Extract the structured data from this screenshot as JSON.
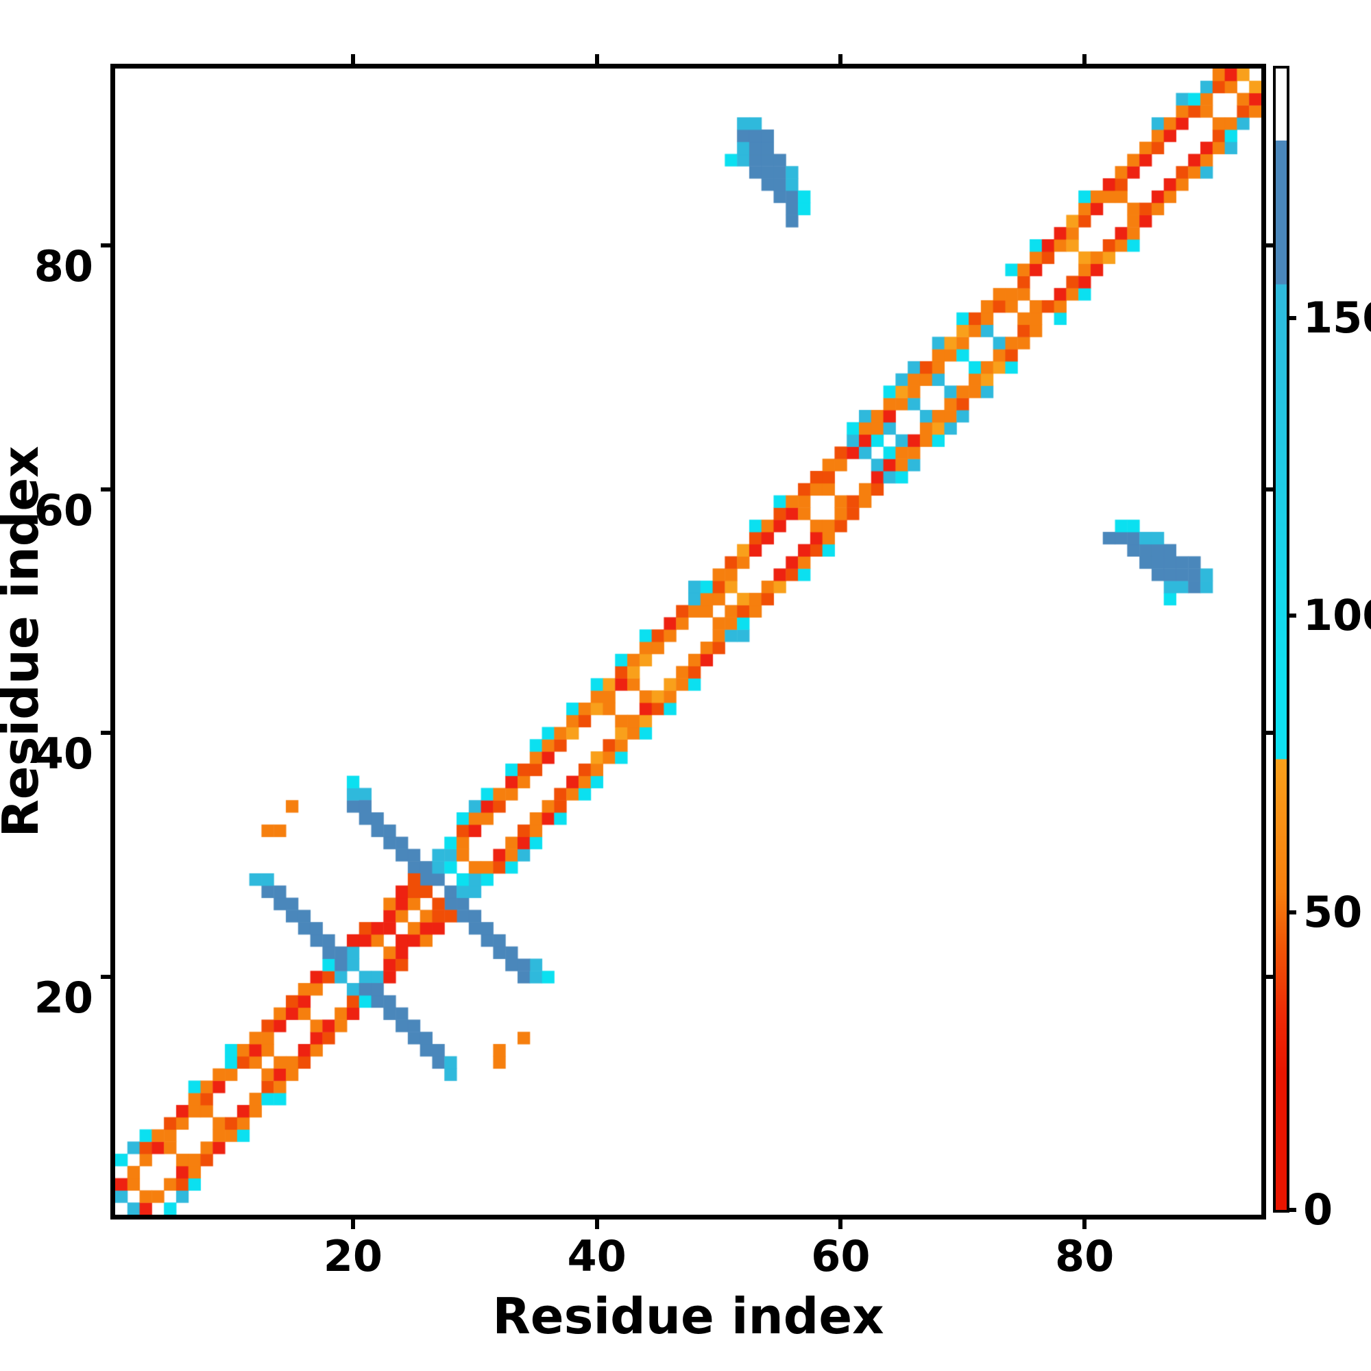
{
  "page_bg": "#ffffff",
  "chart_data": {
    "type": "heatmap",
    "subtype": "protein-residue-contact-map",
    "title": "",
    "xlabel": "Residue index",
    "ylabel": "Residue index",
    "n_residues": 94,
    "x_range": [
      0.5,
      94.5
    ],
    "y_range": [
      0.5,
      94.5
    ],
    "x_ticks": [
      20,
      40,
      60,
      80
    ],
    "y_ticks": [
      20,
      40,
      60,
      80
    ],
    "grid": false,
    "background_value_color": "#ffffff",
    "symmetric": true,
    "palette": {
      "25": "#ee2211",
      "40": "#f04e06",
      "55": "#f67f0e",
      "68": "#f9a01b",
      "85": "#0be0f0",
      "120": "#2fb9dc",
      "160": "#4a87bb"
    },
    "colorbar": {
      "ticks": [
        0,
        50,
        100,
        150
      ],
      "value_min": 0,
      "value_max": 192,
      "stops": [
        [
          0.0,
          "#ffffff"
        ],
        [
          0.063,
          "#ffffff"
        ],
        [
          0.0631,
          "#4a87bb"
        ],
        [
          0.189,
          "#4a87bb"
        ],
        [
          0.1891,
          "#2fb9dc"
        ],
        [
          0.54,
          "#0ee0f0"
        ],
        [
          0.605,
          "#0ee0f0"
        ],
        [
          0.6051,
          "#f9a01b"
        ],
        [
          0.72,
          "#f67f0e"
        ],
        [
          0.77,
          "#f05507"
        ],
        [
          0.83,
          "#ee2a06"
        ],
        [
          0.88,
          "#e81500"
        ],
        [
          1.0,
          "#e81500"
        ]
      ]
    },
    "contacts": [
      [
        1,
        2,
        120
      ],
      [
        1,
        3,
        25
      ],
      [
        1,
        5,
        85
      ],
      [
        2,
        3,
        55
      ],
      [
        2,
        4,
        55
      ],
      [
        2,
        6,
        120
      ],
      [
        3,
        5,
        55
      ],
      [
        3,
        6,
        40
      ],
      [
        3,
        7,
        85
      ],
      [
        4,
        6,
        25
      ],
      [
        4,
        7,
        55
      ],
      [
        5,
        6,
        55
      ],
      [
        5,
        7,
        55
      ],
      [
        5,
        8,
        40
      ],
      [
        6,
        8,
        55
      ],
      [
        6,
        9,
        25
      ],
      [
        7,
        9,
        55
      ],
      [
        7,
        10,
        55
      ],
      [
        7,
        11,
        85
      ],
      [
        8,
        9,
        55
      ],
      [
        8,
        10,
        40
      ],
      [
        8,
        11,
        55
      ],
      [
        9,
        11,
        25
      ],
      [
        9,
        12,
        55
      ],
      [
        10,
        12,
        55
      ],
      [
        10,
        13,
        85
      ],
      [
        10,
        14,
        85
      ],
      [
        11,
        13,
        40
      ],
      [
        11,
        14,
        55
      ],
      [
        12,
        13,
        55
      ],
      [
        12,
        14,
        25
      ],
      [
        12,
        15,
        55
      ],
      [
        13,
        14,
        55
      ],
      [
        13,
        15,
        55
      ],
      [
        13,
        16,
        40
      ],
      [
        14,
        16,
        25
      ],
      [
        14,
        17,
        55
      ],
      [
        15,
        17,
        25
      ],
      [
        15,
        18,
        40
      ],
      [
        16,
        17,
        55
      ],
      [
        16,
        18,
        25
      ],
      [
        16,
        19,
        55
      ],
      [
        17,
        19,
        55
      ],
      [
        17,
        20,
        25
      ],
      [
        18,
        20,
        40
      ],
      [
        18,
        21,
        85
      ],
      [
        19,
        20,
        120
      ],
      [
        20,
        21,
        120
      ],
      [
        20,
        22,
        120
      ],
      [
        12,
        28,
        120
      ],
      [
        13,
        27,
        160
      ],
      [
        13,
        28,
        120
      ],
      [
        14,
        26,
        160
      ],
      [
        14,
        27,
        160
      ],
      [
        15,
        25,
        160
      ],
      [
        15,
        26,
        160
      ],
      [
        16,
        24,
        160
      ],
      [
        16,
        25,
        160
      ],
      [
        17,
        23,
        160
      ],
      [
        17,
        24,
        160
      ],
      [
        18,
        22,
        160
      ],
      [
        18,
        23,
        160
      ],
      [
        19,
        21,
        160
      ],
      [
        19,
        22,
        160
      ],
      [
        20,
        34,
        160
      ],
      [
        20,
        35,
        120
      ],
      [
        20,
        36,
        85
      ],
      [
        21,
        35,
        120
      ],
      [
        21,
        33,
        160
      ],
      [
        21,
        34,
        160
      ],
      [
        22,
        32,
        160
      ],
      [
        22,
        33,
        160
      ],
      [
        23,
        31,
        160
      ],
      [
        23,
        32,
        160
      ],
      [
        24,
        30,
        160
      ],
      [
        24,
        31,
        160
      ],
      [
        25,
        29,
        160
      ],
      [
        25,
        30,
        160
      ],
      [
        26,
        28,
        160
      ],
      [
        26,
        29,
        160
      ],
      [
        27,
        28,
        160
      ],
      [
        27,
        29,
        120
      ],
      [
        27,
        30,
        120
      ],
      [
        28,
        29,
        85
      ],
      [
        28,
        30,
        120
      ],
      [
        28,
        31,
        85
      ],
      [
        13,
        32,
        55
      ],
      [
        14,
        32,
        55
      ],
      [
        15,
        34,
        55
      ],
      [
        20,
        23,
        25
      ],
      [
        21,
        23,
        25
      ],
      [
        21,
        24,
        40
      ],
      [
        22,
        23,
        55
      ],
      [
        22,
        24,
        25
      ],
      [
        23,
        24,
        25
      ],
      [
        23,
        25,
        25
      ],
      [
        23,
        26,
        55
      ],
      [
        24,
        25,
        55
      ],
      [
        24,
        26,
        25
      ],
      [
        24,
        27,
        25
      ],
      [
        25,
        26,
        55
      ],
      [
        25,
        27,
        40
      ],
      [
        25,
        28,
        40
      ],
      [
        26,
        27,
        40
      ],
      [
        29,
        30,
        55
      ],
      [
        29,
        31,
        55
      ],
      [
        29,
        32,
        40
      ],
      [
        29,
        33,
        85
      ],
      [
        30,
        32,
        25
      ],
      [
        30,
        33,
        55
      ],
      [
        30,
        34,
        120
      ],
      [
        31,
        33,
        55
      ],
      [
        31,
        34,
        25
      ],
      [
        31,
        35,
        85
      ],
      [
        32,
        34,
        40
      ],
      [
        32,
        35,
        55
      ],
      [
        33,
        35,
        55
      ],
      [
        33,
        36,
        25
      ],
      [
        33,
        37,
        85
      ],
      [
        34,
        36,
        55
      ],
      [
        34,
        37,
        40
      ],
      [
        35,
        37,
        40
      ],
      [
        35,
        38,
        55
      ],
      [
        35,
        39,
        85
      ],
      [
        36,
        38,
        25
      ],
      [
        36,
        39,
        55
      ],
      [
        36,
        40,
        85
      ],
      [
        37,
        39,
        40
      ],
      [
        37,
        40,
        55
      ],
      [
        38,
        40,
        68
      ],
      [
        38,
        41,
        55
      ],
      [
        38,
        42,
        85
      ],
      [
        39,
        41,
        40
      ],
      [
        39,
        42,
        55
      ],
      [
        40,
        42,
        68
      ],
      [
        40,
        43,
        55
      ],
      [
        40,
        44,
        85
      ],
      [
        41,
        42,
        55
      ],
      [
        41,
        43,
        55
      ],
      [
        41,
        44,
        68
      ],
      [
        42,
        44,
        25
      ],
      [
        42,
        45,
        40
      ],
      [
        42,
        46,
        85
      ],
      [
        43,
        44,
        55
      ],
      [
        43,
        45,
        68
      ],
      [
        43,
        46,
        55
      ],
      [
        44,
        46,
        68
      ],
      [
        44,
        47,
        55
      ],
      [
        44,
        48,
        85
      ],
      [
        45,
        47,
        55
      ],
      [
        45,
        48,
        40
      ],
      [
        46,
        48,
        55
      ],
      [
        46,
        49,
        25
      ],
      [
        47,
        49,
        55
      ],
      [
        47,
        50,
        40
      ],
      [
        48,
        50,
        55
      ],
      [
        48,
        51,
        120
      ],
      [
        48,
        52,
        120
      ],
      [
        49,
        50,
        55
      ],
      [
        49,
        51,
        55
      ],
      [
        49,
        52,
        85
      ],
      [
        50,
        51,
        55
      ],
      [
        50,
        52,
        40
      ],
      [
        50,
        53,
        55
      ],
      [
        51,
        52,
        68
      ],
      [
        51,
        53,
        55
      ],
      [
        51,
        54,
        40
      ],
      [
        52,
        54,
        55
      ],
      [
        52,
        55,
        68
      ],
      [
        53,
        55,
        25
      ],
      [
        53,
        56,
        40
      ],
      [
        53,
        57,
        85
      ],
      [
        54,
        56,
        25
      ],
      [
        54,
        57,
        55
      ],
      [
        55,
        57,
        25
      ],
      [
        55,
        58,
        40
      ],
      [
        55,
        59,
        85
      ],
      [
        56,
        58,
        25
      ],
      [
        56,
        59,
        55
      ],
      [
        57,
        58,
        55
      ],
      [
        57,
        59,
        55
      ],
      [
        57,
        60,
        40
      ],
      [
        58,
        60,
        55
      ],
      [
        58,
        61,
        40
      ],
      [
        59,
        60,
        55
      ],
      [
        59,
        61,
        40
      ],
      [
        59,
        62,
        55
      ],
      [
        60,
        62,
        55
      ],
      [
        60,
        63,
        40
      ],
      [
        61,
        63,
        25
      ],
      [
        61,
        64,
        120
      ],
      [
        61,
        65,
        85
      ],
      [
        62,
        63,
        120
      ],
      [
        62,
        64,
        25
      ],
      [
        62,
        65,
        55
      ],
      [
        62,
        66,
        120
      ],
      [
        63,
        64,
        85
      ],
      [
        63,
        65,
        55
      ],
      [
        63,
        66,
        55
      ],
      [
        64,
        65,
        120
      ],
      [
        64,
        66,
        25
      ],
      [
        64,
        67,
        55
      ],
      [
        64,
        68,
        85
      ],
      [
        65,
        67,
        55
      ],
      [
        65,
        68,
        68
      ],
      [
        65,
        69,
        120
      ],
      [
        66,
        67,
        120
      ],
      [
        66,
        68,
        55
      ],
      [
        66,
        69,
        55
      ],
      [
        66,
        70,
        120
      ],
      [
        67,
        69,
        55
      ],
      [
        67,
        70,
        40
      ],
      [
        68,
        69,
        120
      ],
      [
        68,
        70,
        55
      ],
      [
        68,
        71,
        55
      ],
      [
        68,
        72,
        120
      ],
      [
        69,
        71,
        55
      ],
      [
        69,
        72,
        68
      ],
      [
        70,
        71,
        85
      ],
      [
        70,
        72,
        55
      ],
      [
        70,
        73,
        68
      ],
      [
        70,
        74,
        85
      ],
      [
        71,
        73,
        55
      ],
      [
        71,
        74,
        40
      ],
      [
        72,
        73,
        120
      ],
      [
        72,
        74,
        55
      ],
      [
        72,
        75,
        55
      ],
      [
        73,
        75,
        40
      ],
      [
        73,
        76,
        55
      ],
      [
        74,
        75,
        55
      ],
      [
        74,
        76,
        55
      ],
      [
        74,
        78,
        85
      ],
      [
        75,
        76,
        55
      ],
      [
        75,
        77,
        40
      ],
      [
        75,
        78,
        55
      ],
      [
        76,
        78,
        25
      ],
      [
        76,
        79,
        55
      ],
      [
        76,
        80,
        85
      ],
      [
        77,
        79,
        40
      ],
      [
        77,
        80,
        25
      ],
      [
        78,
        80,
        55
      ],
      [
        78,
        81,
        25
      ],
      [
        79,
        80,
        68
      ],
      [
        79,
        81,
        55
      ],
      [
        79,
        82,
        68
      ],
      [
        80,
        82,
        40
      ],
      [
        80,
        83,
        55
      ],
      [
        80,
        84,
        85
      ],
      [
        81,
        83,
        25
      ],
      [
        81,
        84,
        55
      ],
      [
        82,
        84,
        55
      ],
      [
        82,
        85,
        25
      ],
      [
        83,
        84,
        55
      ],
      [
        83,
        85,
        40
      ],
      [
        83,
        86,
        55
      ],
      [
        84,
        86,
        25
      ],
      [
        84,
        87,
        55
      ],
      [
        85,
        87,
        25
      ],
      [
        85,
        88,
        55
      ],
      [
        86,
        88,
        40
      ],
      [
        86,
        89,
        55
      ],
      [
        86,
        90,
        120
      ],
      [
        87,
        89,
        25
      ],
      [
        87,
        90,
        55
      ],
      [
        88,
        90,
        25
      ],
      [
        88,
        91,
        55
      ],
      [
        88,
        92,
        120
      ],
      [
        89,
        91,
        40
      ],
      [
        89,
        92,
        85
      ],
      [
        90,
        91,
        55
      ],
      [
        90,
        92,
        55
      ],
      [
        90,
        93,
        120
      ],
      [
        91,
        93,
        40
      ],
      [
        91,
        94,
        55
      ],
      [
        92,
        93,
        55
      ],
      [
        92,
        94,
        25
      ],
      [
        93,
        94,
        68
      ],
      [
        51,
        87,
        85
      ],
      [
        52,
        87,
        120
      ],
      [
        52,
        88,
        120
      ],
      [
        52,
        89,
        160
      ],
      [
        52,
        90,
        120
      ],
      [
        53,
        86,
        160
      ],
      [
        53,
        87,
        160
      ],
      [
        53,
        88,
        160
      ],
      [
        53,
        89,
        160
      ],
      [
        53,
        90,
        120
      ],
      [
        54,
        85,
        160
      ],
      [
        54,
        86,
        160
      ],
      [
        54,
        87,
        160
      ],
      [
        54,
        88,
        160
      ],
      [
        54,
        89,
        160
      ],
      [
        55,
        84,
        160
      ],
      [
        55,
        85,
        160
      ],
      [
        55,
        86,
        160
      ],
      [
        55,
        87,
        160
      ],
      [
        56,
        82,
        160
      ],
      [
        56,
        83,
        160
      ],
      [
        56,
        84,
        160
      ],
      [
        56,
        85,
        120
      ],
      [
        56,
        86,
        120
      ],
      [
        57,
        83,
        85
      ],
      [
        57,
        84,
        85
      ]
    ]
  },
  "axes": {
    "x_title": "Residue index",
    "y_title": "Residue index",
    "x_tick_labels": [
      "20",
      "40",
      "60",
      "80"
    ],
    "y_tick_labels": [
      "20",
      "40",
      "60",
      "80"
    ],
    "axis_color": "#000000"
  },
  "colorbar_labels": [
    "0",
    "50",
    "100",
    "150"
  ]
}
